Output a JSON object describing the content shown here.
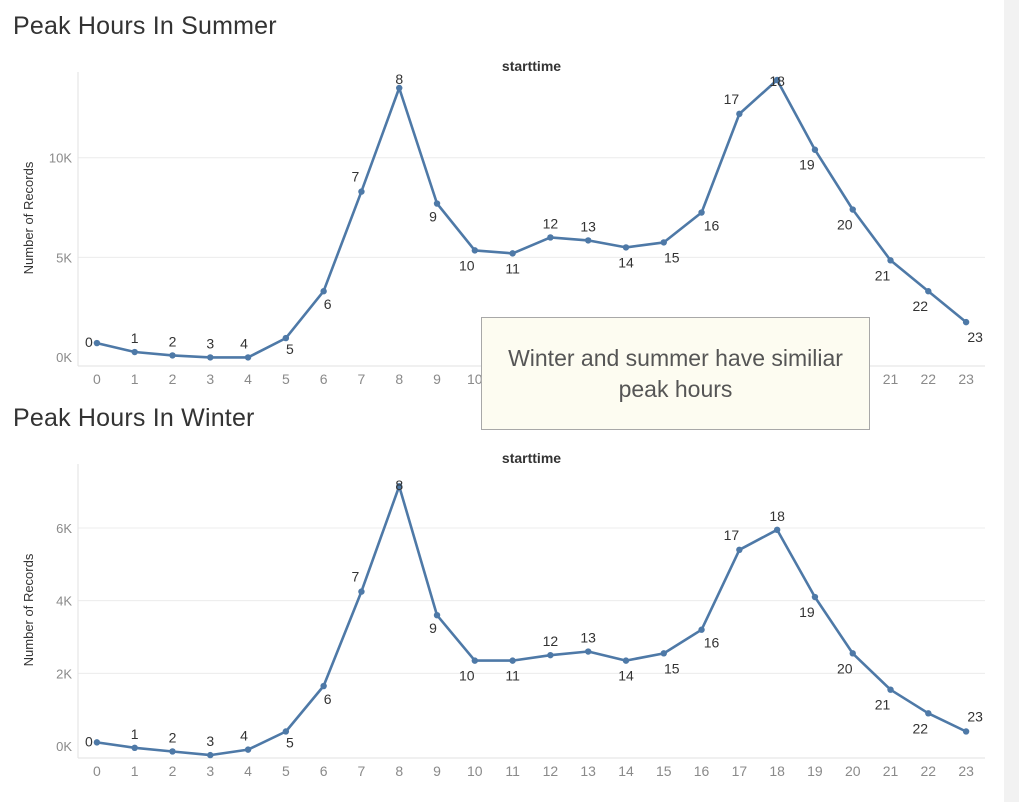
{
  "colors": {
    "series": "#4e79a7",
    "annotation_bg": "#fdfcf1",
    "annotation_border": "#a8a8a8"
  },
  "annotation": {
    "text": "Winter and summer have similiar peak hours"
  },
  "chart_data": [
    {
      "type": "line",
      "title": "Peak Hours In Summer",
      "column_header": "starttime",
      "xlabel": "",
      "ylabel": "Number of Records",
      "x": [
        0,
        1,
        2,
        3,
        4,
        5,
        6,
        7,
        8,
        9,
        10,
        11,
        12,
        13,
        14,
        15,
        16,
        17,
        18,
        19,
        20,
        21,
        22,
        23
      ],
      "point_labels": [
        "0",
        "1",
        "2",
        "3",
        "4",
        "5",
        "6",
        "7",
        "8",
        "9",
        "10",
        "11",
        "12",
        "13",
        "14",
        "15",
        "16",
        "17",
        "18",
        "19",
        "20",
        "21",
        "22",
        "23"
      ],
      "values": [
        700,
        250,
        80,
        -20,
        -20,
        950,
        3300,
        8300,
        13500,
        7700,
        5350,
        5200,
        6000,
        5850,
        5500,
        5750,
        7250,
        12200,
        13900,
        10400,
        7400,
        4850,
        3300,
        1750
      ],
      "ylim": [
        0,
        14000
      ],
      "yticks": [
        0,
        5000,
        10000
      ],
      "ytick_labels": [
        "0K",
        "5K",
        "10K"
      ],
      "grid": true,
      "markers": true
    },
    {
      "type": "line",
      "title": "Peak Hours In Winter",
      "column_header": "starttime",
      "xlabel": "",
      "ylabel": "Number of Records",
      "x": [
        0,
        1,
        2,
        3,
        4,
        5,
        6,
        7,
        8,
        9,
        10,
        11,
        12,
        13,
        14,
        15,
        16,
        17,
        18,
        19,
        20,
        21,
        22,
        23
      ],
      "point_labels": [
        "0",
        "1",
        "2",
        "3",
        "4",
        "5",
        "6",
        "7",
        "8",
        "9",
        "10",
        "11",
        "12",
        "13",
        "14",
        "15",
        "16",
        "17",
        "18",
        "19",
        "20",
        "21",
        "22",
        "23"
      ],
      "values": [
        100,
        -50,
        -150,
        -250,
        -100,
        400,
        1650,
        4250,
        7150,
        3600,
        2350,
        2350,
        2500,
        2600,
        2350,
        2550,
        3200,
        5400,
        5950,
        4100,
        2550,
        1550,
        900,
        400
      ],
      "ylim": [
        0,
        6000
      ],
      "yticks": [
        0,
        2000,
        4000,
        6000
      ],
      "ytick_labels": [
        "0K",
        "2K",
        "4K",
        "6K"
      ],
      "grid": true,
      "markers": true
    }
  ]
}
